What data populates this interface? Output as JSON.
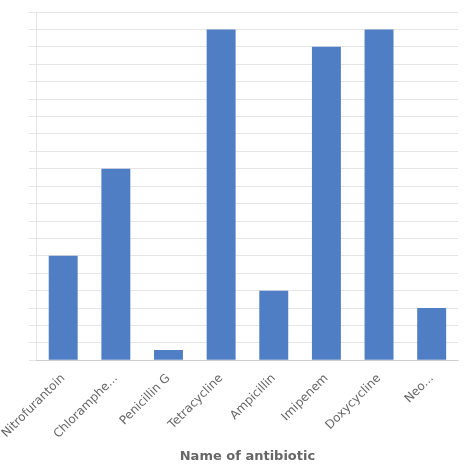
{
  "chart_data": {
    "type": "bar",
    "xlabel": "Name of antibiotic",
    "categories": [
      "Nitrofurantoin",
      "Chloramphe...",
      "Penicillin G",
      "Tetracycline",
      "Ampicillin",
      "Imipenem",
      "Doxycycline",
      "Neo..."
    ],
    "values": [
      30,
      55,
      3,
      95,
      20,
      90,
      95,
      15
    ],
    "color": "#4f7ec4",
    "ylim": [
      0,
      100
    ],
    "yticks": [
      0,
      5,
      10,
      15,
      20,
      25,
      30,
      35,
      40,
      45,
      50,
      55,
      60,
      65,
      70,
      75,
      80,
      85,
      90,
      95,
      100
    ],
    "grid": true,
    "tick_labels": "x"
  }
}
